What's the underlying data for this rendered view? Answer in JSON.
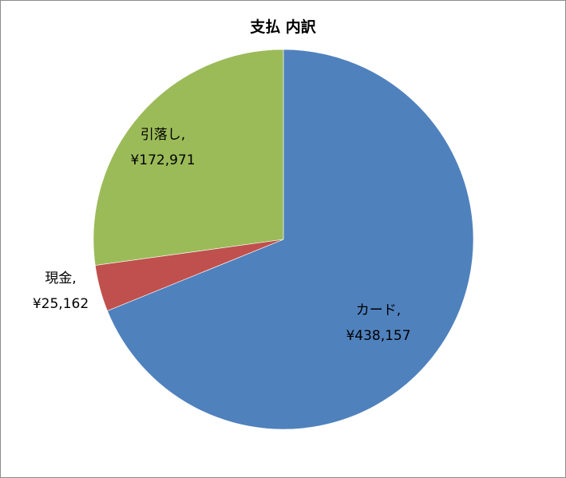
{
  "chart_data": {
    "type": "pie",
    "title": "支払 内訳",
    "slices": [
      {
        "category": "カード",
        "value": 438157,
        "label": "カード,",
        "value_label": "¥438,157",
        "color": "#4f81bd"
      },
      {
        "category": "現金",
        "value": 25162,
        "label": "現金,",
        "value_label": "¥25,162",
        "color": "#c0504d"
      },
      {
        "category": "引落し",
        "value": 172971,
        "label": "引落し,",
        "value_label": "¥172,971",
        "color": "#9bbb59"
      }
    ],
    "start": "12 o'clock, clockwise",
    "legend": "none",
    "data_labels": "category and value"
  }
}
